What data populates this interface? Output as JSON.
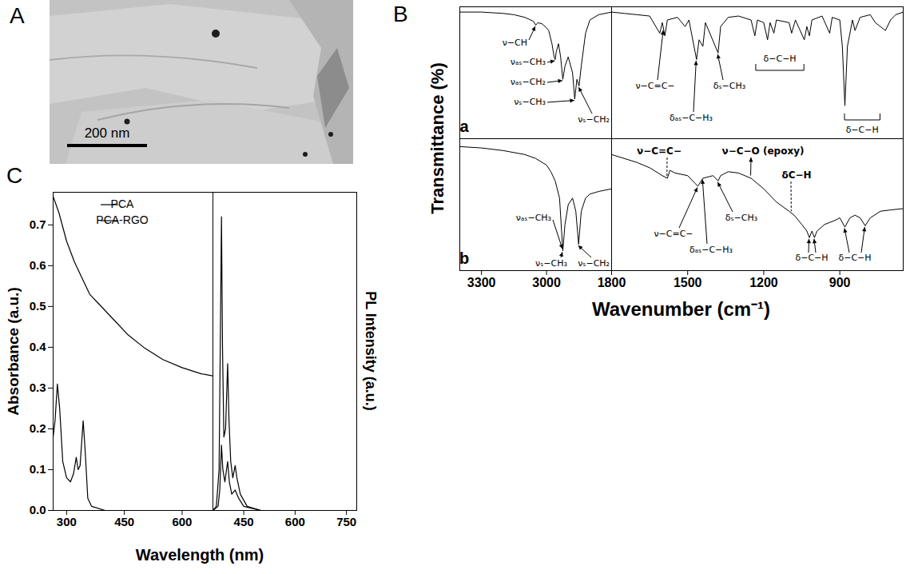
{
  "chart_data": [
    {
      "type": "image",
      "panel": "A",
      "annotations": [
        "200 nm"
      ]
    },
    {
      "type": "line",
      "panel": "B",
      "y_label": "Transmittance (%)",
      "x_label": "Wavenumber (cm⁻¹)",
      "tick_labels": "x",
      "ylim": [
        0,
        100
      ],
      "columns": [
        {
          "xlim": [
            3400,
            2700
          ],
          "xticks": [
            3300,
            3000
          ]
        },
        {
          "xlim": [
            1800,
            650
          ],
          "xticks": [
            1800,
            1500,
            1200,
            900
          ]
        }
      ],
      "series": [
        {
          "name": "a",
          "color": "#000000",
          "segments": [
            {
              "x": [
                3400,
                3300,
                3200,
                3150,
                3100,
                3060,
                3050,
                3040,
                3020,
                3000,
                2990,
                2975,
                2965,
                2960,
                2955,
                2945,
                2935,
                2925,
                2915,
                2900,
                2880,
                2870,
                2860,
                2850,
                2840,
                2820,
                2800,
                2760,
                2700
              ],
              "values": [
                96,
                96,
                95,
                94,
                92,
                89,
                86,
                88,
                87,
                84,
                82,
                72,
                62,
                60,
                66,
                72,
                62,
                45,
                55,
                62,
                50,
                30,
                45,
                40,
                55,
                80,
                90,
                94,
                96
              ],
              "annotations": [
                {
                  "text": "ν−CH",
                  "x": 3050
                },
                {
                  "text": "νₐₛ−CH₃",
                  "x": 2960
                },
                {
                  "text": "νₐₛ−CH₂",
                  "x": 2925
                },
                {
                  "text": "νₛ−CH₃",
                  "x": 2870
                },
                {
                  "text": "νₛ−CH₂",
                  "x": 2850
                }
              ]
            },
            {
              "x": [
                1800,
                1750,
                1700,
                1650,
                1610,
                1600,
                1590,
                1580,
                1540,
                1510,
                1495,
                1465,
                1455,
                1440,
                1430,
                1380,
                1370,
                1340,
                1300,
                1250,
                1235,
                1225,
                1200,
                1185,
                1175,
                1160,
                1150,
                1100,
                1090,
                1075,
                1040,
                1030,
                1020,
                1010,
                970,
                940,
                930,
                900,
                890,
                880,
                870,
                850,
                840,
                820,
                780,
                760,
                740,
                720,
                700,
                680,
                650
              ],
              "values": [
                96,
                95,
                94,
                93,
                80,
                88,
                78,
                90,
                92,
                85,
                90,
                60,
                75,
                70,
                88,
                65,
                85,
                92,
                93,
                90,
                78,
                90,
                88,
                75,
                88,
                80,
                90,
                88,
                80,
                90,
                75,
                85,
                78,
                90,
                93,
                80,
                92,
                90,
                70,
                25,
                70,
                90,
                82,
                92,
                94,
                88,
                85,
                82,
                90,
                94,
                96
              ],
              "annotations": [
                {
                  "text": "ν−C=C−",
                  "x": 1595
                },
                {
                  "text": "δₐₛ−C−H₃",
                  "x": 1465
                },
                {
                  "text": "δₛ−CH₃",
                  "x": 1380
                }
              ],
              "brackets": [
                {
                  "text": "δ−C−H",
                  "x": [
                    1230,
                    1040
                  ]
                },
                {
                  "text": "δ−C−H",
                  "x": [
                    880,
                    740
                  ]
                }
              ]
            }
          ]
        },
        {
          "name": "b",
          "color": "#000000",
          "segments": [
            {
              "x": [
                3400,
                3300,
                3200,
                3100,
                3050,
                3000,
                2980,
                2960,
                2940,
                2925,
                2915,
                2900,
                2880,
                2865,
                2852,
                2840,
                2820,
                2800,
                2760,
                2700
              ],
              "values": [
                94,
                93,
                91,
                88,
                85,
                80,
                75,
                68,
                55,
                15,
                35,
                50,
                55,
                45,
                20,
                45,
                55,
                58,
                60,
                62
              ],
              "annotations": [
                {
                  "text": "νₐₛ−CH₃",
                  "x": 2925
                },
                {
                  "text": "νₛ−CH₃",
                  "x": 2925
                },
                {
                  "text": "νₛ−CH₂",
                  "x": 2852
                }
              ]
            },
            {
              "x": [
                1800,
                1700,
                1650,
                1600,
                1580,
                1570,
                1550,
                1500,
                1470,
                1460,
                1440,
                1400,
                1380,
                1370,
                1340,
                1300,
                1250,
                1200,
                1150,
                1100,
                1080,
                1050,
                1030,
                1020,
                1010,
                1000,
                990,
                960,
                920,
                900,
                880,
                860,
                840,
                820,
                800,
                780,
                740,
                700,
                650
              ],
              "values": [
                88,
                82,
                78,
                72,
                70,
                76,
                74,
                72,
                66,
                64,
                70,
                72,
                68,
                72,
                75,
                74,
                70,
                62,
                52,
                45,
                42,
                35,
                30,
                25,
                30,
                25,
                30,
                35,
                38,
                40,
                33,
                40,
                42,
                40,
                34,
                40,
                45,
                46,
                47
              ],
              "annotations": [
                {
                  "text": "ν−C=C−",
                  "x": 1580
                },
                {
                  "text": "ν−C−O (epoxy)",
                  "x": 1250
                },
                {
                  "text": "δC−H",
                  "x": 1090
                },
                {
                  "text": "ν−C=C−",
                  "x": 1460
                },
                {
                  "text": "δₐₛ−C−H₃",
                  "x": 1440
                },
                {
                  "text": "δₛ−CH₃",
                  "x": 1380
                },
                {
                  "text": "δ−C−H",
                  "x": [
                    1020,
                    1000
                  ]
                },
                {
                  "text": "δ−C−H",
                  "x": [
                    880,
                    800
                  ]
                }
              ]
            }
          ]
        }
      ]
    },
    {
      "type": "line",
      "panel": "C",
      "x_label": "Wavelength (nm)",
      "legend": "top-right",
      "subplots": [
        {
          "y_label": "Absorbance (a.u.)",
          "xlim": [
            265,
            680
          ],
          "xticks": [
            300,
            450,
            600
          ],
          "ylim": [
            0,
            0.78
          ],
          "yticks": [
            {
              "value": 0,
              "label": "0.0"
            },
            0.1,
            0.2,
            0.3,
            0.4,
            0.5,
            0.6,
            0.7
          ],
          "series": [
            {
              "name": "PCA",
              "color": "#000000",
              "x": [
                265,
                270,
                276,
                282,
                290,
                300,
                310,
                318,
                325,
                330,
                335,
                343,
                348,
                355,
                365,
                400,
                500,
                680
              ],
              "values": [
                0.18,
                0.22,
                0.31,
                0.25,
                0.12,
                0.08,
                0.07,
                0.09,
                0.13,
                0.1,
                0.11,
                0.22,
                0.15,
                0.03,
                0.01,
                0,
                0,
                0
              ]
            },
            {
              "name": "PCA-RGO",
              "color": "#000000",
              "x": [
                265,
                280,
                300,
                320,
                340,
                360,
                380,
                400,
                430,
                460,
                500,
                550,
                600,
                650,
                680
              ],
              "values": [
                0.77,
                0.73,
                0.66,
                0.61,
                0.57,
                0.53,
                0.51,
                0.49,
                0.46,
                0.43,
                0.4,
                0.37,
                0.35,
                0.335,
                0.33
              ]
            }
          ]
        },
        {
          "y_label": "PL Intensity (a.u.)",
          "tick_labels": "x",
          "xlim": [
            360,
            780
          ],
          "xticks": [
            450,
            600,
            750
          ],
          "ylim": [
            0,
            0.78
          ],
          "series": [
            {
              "name": "PCA",
              "color": "#000000",
              "x": [
                360,
                370,
                378,
                382,
                385,
                388,
                392,
                397,
                403,
                407,
                412,
                418,
                425,
                430,
                440,
                460,
                500,
                600,
                780
              ],
              "values": [
                0,
                0.01,
                0.1,
                0.45,
                0.72,
                0.4,
                0.18,
                0.2,
                0.36,
                0.22,
                0.12,
                0.08,
                0.11,
                0.08,
                0.04,
                0.01,
                0,
                0,
                0
              ]
            },
            {
              "name": "PCA-RGO",
              "color": "#000000",
              "x": [
                360,
                375,
                380,
                385,
                389,
                395,
                403,
                408,
                415,
                425,
                435,
                450,
                500,
                780
              ],
              "values": [
                0,
                0.01,
                0.05,
                0.16,
                0.1,
                0.07,
                0.12,
                0.07,
                0.04,
                0.05,
                0.03,
                0.01,
                0,
                0
              ]
            }
          ]
        }
      ]
    }
  ]
}
